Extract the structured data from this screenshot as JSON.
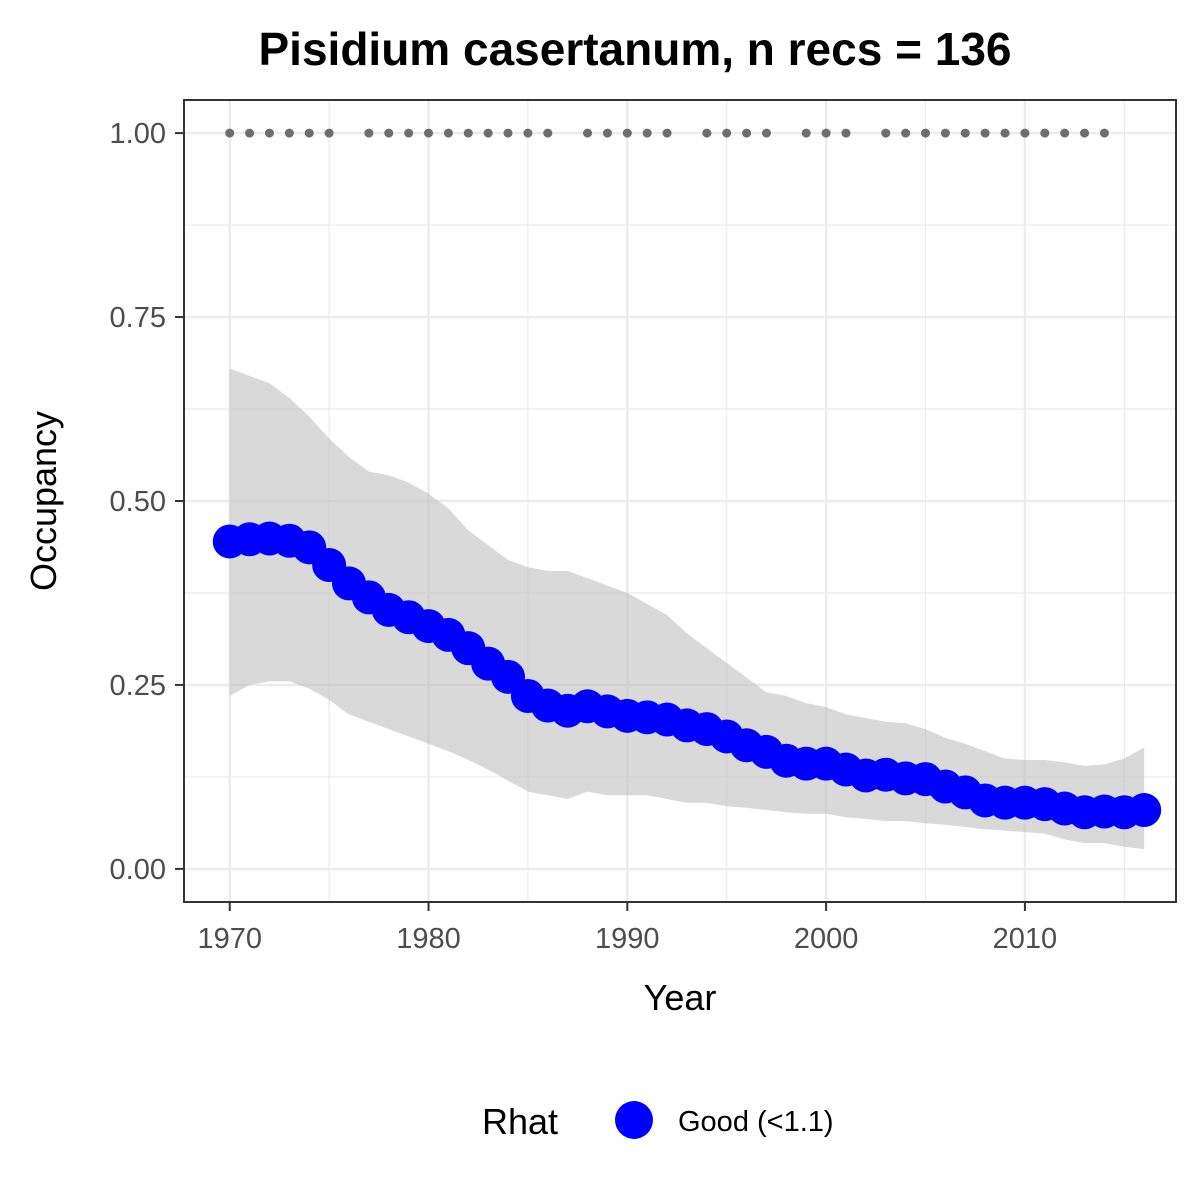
{
  "chart_data": {
    "type": "line",
    "title": "Pisidium casertanum, n recs = 136",
    "xlabel": "Year",
    "ylabel": "Occupancy",
    "xlim": [
      1967.7,
      2017.6
    ],
    "ylim": [
      -0.045,
      1.045
    ],
    "x_ticks": [
      1970,
      1980,
      1990,
      2000,
      2010
    ],
    "x_tick_labels": [
      "1970",
      "1980",
      "1990",
      "2000",
      "2010"
    ],
    "y_ticks": [
      0,
      0.25,
      0.5,
      0.75,
      1.0
    ],
    "y_tick_labels": [
      "0.00",
      "0.25",
      "0.50",
      "0.75",
      "1.00"
    ],
    "grid": true,
    "legend_position": "bottom",
    "legend": {
      "title": "Rhat",
      "entries": [
        {
          "label": "Good (<1.1)",
          "color": "#0000ff"
        }
      ]
    },
    "colors": {
      "points": "#0000ff",
      "ribbon": "#bfbfbf",
      "records": "#6e6e6e",
      "grid": "#ebebeb",
      "border": "#333333"
    },
    "years": [
      1970,
      1971,
      1972,
      1973,
      1974,
      1975,
      1976,
      1977,
      1978,
      1979,
      1980,
      1981,
      1982,
      1983,
      1984,
      1985,
      1986,
      1987,
      1988,
      1989,
      1990,
      1991,
      1992,
      1993,
      1994,
      1995,
      1996,
      1997,
      1998,
      1999,
      2000,
      2001,
      2002,
      2003,
      2004,
      2005,
      2006,
      2007,
      2008,
      2009,
      2010,
      2011,
      2012,
      2013,
      2014,
      2015,
      2016
    ],
    "series": [
      {
        "name": "Good (<1.1)",
        "values": [
          0.445,
          0.448,
          0.449,
          0.446,
          0.437,
          0.413,
          0.388,
          0.369,
          0.352,
          0.342,
          0.33,
          0.318,
          0.3,
          0.279,
          0.261,
          0.235,
          0.222,
          0.215,
          0.221,
          0.214,
          0.208,
          0.206,
          0.203,
          0.195,
          0.19,
          0.18,
          0.168,
          0.159,
          0.147,
          0.143,
          0.143,
          0.135,
          0.127,
          0.128,
          0.123,
          0.122,
          0.112,
          0.104,
          0.093,
          0.09,
          0.09,
          0.088,
          0.082,
          0.077,
          0.078,
          0.077,
          0.08
        ],
        "lower": [
          0.235,
          0.25,
          0.255,
          0.255,
          0.245,
          0.23,
          0.21,
          0.2,
          0.19,
          0.18,
          0.17,
          0.16,
          0.148,
          0.135,
          0.12,
          0.105,
          0.1,
          0.095,
          0.105,
          0.1,
          0.1,
          0.1,
          0.095,
          0.09,
          0.09,
          0.085,
          0.083,
          0.08,
          0.077,
          0.075,
          0.075,
          0.07,
          0.068,
          0.065,
          0.065,
          0.062,
          0.06,
          0.057,
          0.054,
          0.052,
          0.05,
          0.048,
          0.04,
          0.035,
          0.035,
          0.03,
          0.027
        ],
        "upper": [
          0.68,
          0.67,
          0.66,
          0.64,
          0.615,
          0.585,
          0.56,
          0.54,
          0.535,
          0.525,
          0.51,
          0.49,
          0.46,
          0.44,
          0.42,
          0.41,
          0.405,
          0.405,
          0.395,
          0.385,
          0.375,
          0.36,
          0.345,
          0.32,
          0.3,
          0.28,
          0.26,
          0.24,
          0.235,
          0.225,
          0.22,
          0.21,
          0.205,
          0.2,
          0.198,
          0.19,
          0.178,
          0.17,
          0.16,
          0.15,
          0.148,
          0.148,
          0.145,
          0.14,
          0.142,
          0.15,
          0.165
        ]
      }
    ],
    "record_years": [
      1970,
      1971,
      1972,
      1973,
      1974,
      1975,
      1977,
      1978,
      1979,
      1980,
      1981,
      1982,
      1983,
      1984,
      1985,
      1986,
      1988,
      1989,
      1990,
      1991,
      1992,
      1994,
      1995,
      1996,
      1997,
      1999,
      2000,
      2001,
      2003,
      2004,
      2005,
      2006,
      2007,
      2008,
      2009,
      2010,
      2011,
      2012,
      2013,
      2014
    ],
    "record_value": 1.0
  }
}
